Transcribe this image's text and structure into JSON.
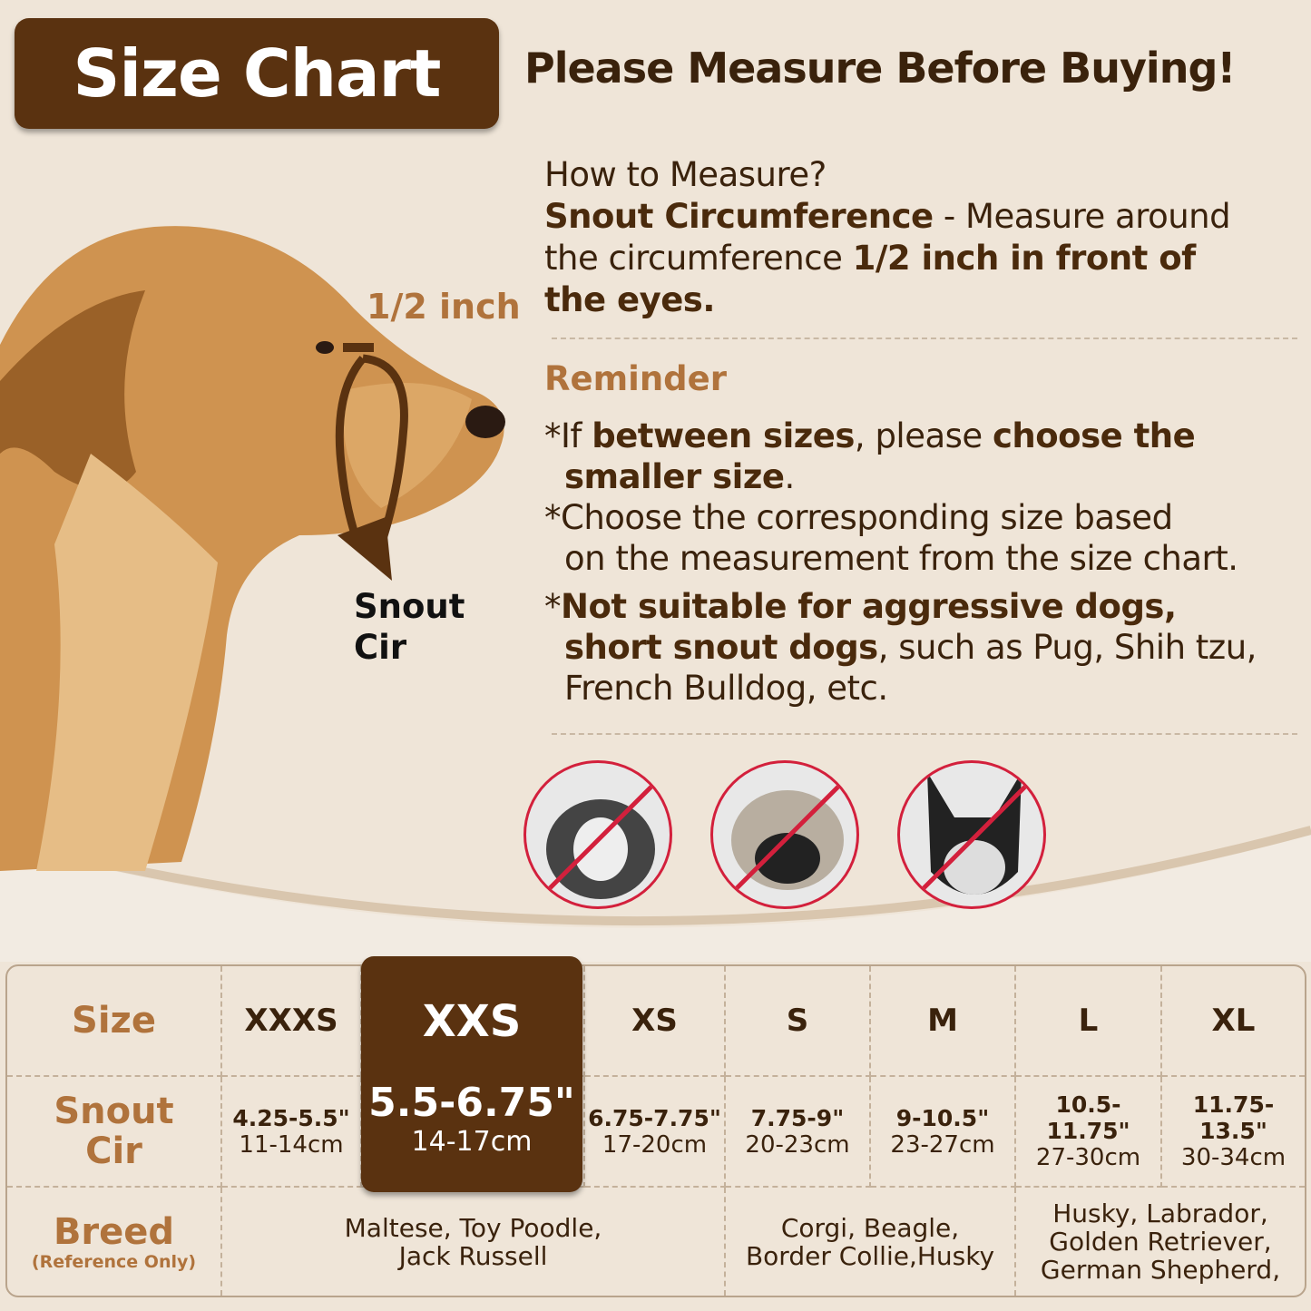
{
  "header": {
    "title": "Size Chart",
    "subtitle": "Please Measure Before Buying!"
  },
  "measure": {
    "question": "How to Measure?",
    "line1_bold": "Snout Circumference",
    "line1_rest": " - Measure around",
    "line2_rest": "the circumference ",
    "line2_bold": "1/2 inch in front of",
    "line3_bold": "the eyes."
  },
  "diagram": {
    "half_inch": "1/2 inch",
    "snout_label_1": "Snout",
    "snout_label_2": "Cir"
  },
  "reminder": {
    "title": "Reminder",
    "r1a": "*If ",
    "r1b": "between sizes",
    "r1c": ", please ",
    "r1d": "choose the",
    "r1e": "smaller size",
    "r1f": ".",
    "r2a": "*Choose the corresponding size based",
    "r2b": "on the measurement from the size chart.",
    "r3a": "*",
    "r3b": "Not suitable for aggressive dogs,",
    "r3c": "short snout dogs",
    "r3d": ", such as Pug, Shih tzu,",
    "r3e": "French Bulldog, etc."
  },
  "not_suitable_dogs": [
    "Shih tzu",
    "Pug",
    "French Bulldog"
  ],
  "colors": {
    "brand": "#5a3210",
    "accent": "#b0733c",
    "background": "#efe5d8",
    "prohibit": "#d3203c"
  },
  "table": {
    "row_headers": {
      "size": "Size",
      "snout_1": "Snout",
      "snout_2": "Cir",
      "breed": "Breed",
      "breed_note": "(Reference Only)"
    },
    "highlighted": "XXS",
    "sizes": [
      {
        "size": "XXXS",
        "inch": "4.25-5.5\"",
        "cm": "11-14cm"
      },
      {
        "size": "XXS",
        "inch": "5.5-6.75\"",
        "cm": "14-17cm"
      },
      {
        "size": "XS",
        "inch": "6.75-7.75\"",
        "cm": "17-20cm"
      },
      {
        "size": "S",
        "inch": "7.75-9\"",
        "cm": "20-23cm"
      },
      {
        "size": "M",
        "inch": "9-10.5\"",
        "cm": "23-27cm"
      },
      {
        "size": "L",
        "inch": "10.5-11.75\"",
        "cm": "27-30cm"
      },
      {
        "size": "XL",
        "inch": "11.75-13.5\"",
        "cm": "30-34cm"
      }
    ],
    "breeds": [
      {
        "l1": "Maltese, Toy Poodle,",
        "l2": "Jack Russell"
      },
      {
        "l1": "Corgi, Beagle,",
        "l2": "Border Collie,Husky"
      },
      {
        "l1": "Husky, Labrador,",
        "l2": "Golden Retriever,",
        "l3": "German Shepherd,"
      }
    ]
  }
}
